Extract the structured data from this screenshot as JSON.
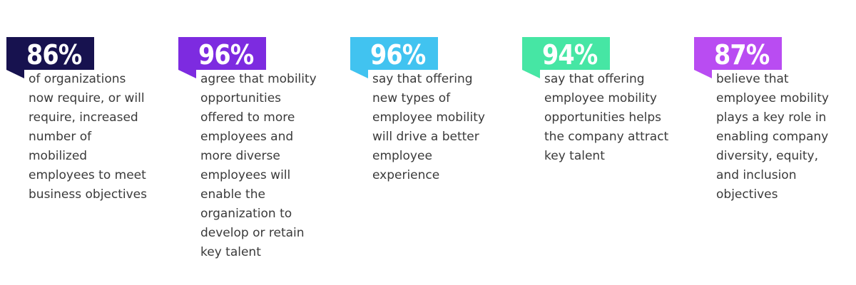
{
  "stats": [
    {
      "value": "86%",
      "color": "#17124f",
      "text": "of organizations\nnow require, or will\nrequire, increased\nnumber of\nmobilized\nemployees to meet\nbusiness objectives"
    },
    {
      "value": "96%",
      "color": "#7d2be0",
      "text": "agree that mobility\nopportunities\noffered to more\nemployees and\nmore diverse\nemployees will\nenable the\norganization to\ndevelop or retain\nkey talent"
    },
    {
      "value": "96%",
      "color": "#41c3f0",
      "text": "say that offering\nnew types of\nemployee mobility\nwill drive a better\nemployee\nexperience"
    },
    {
      "value": "94%",
      "color": "#46e6a4",
      "text": "say that offering\nemployee mobility\nopportunities helps\nthe company attract\nkey talent"
    },
    {
      "value": "87%",
      "color": "#b94cf2",
      "text": "believe that\nemployee mobility\nplays a key role in\nenabling company\ndiversity, equity,\nand inclusion\nobjectives"
    }
  ]
}
